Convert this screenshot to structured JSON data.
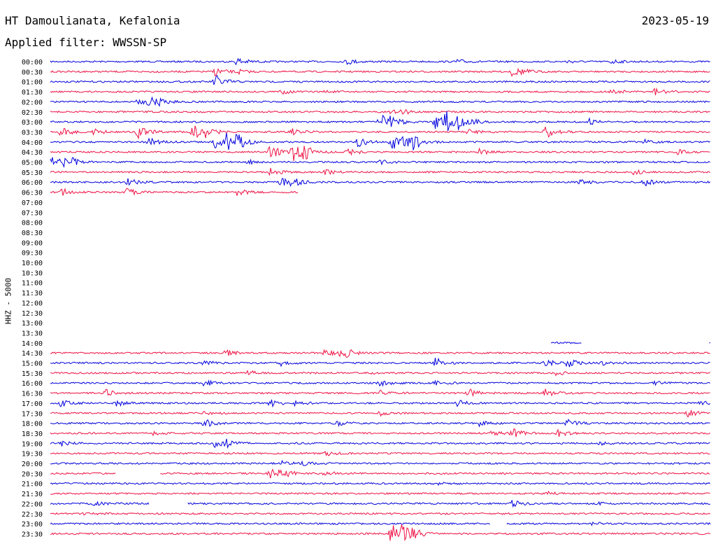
{
  "header": {
    "station": "HT Damoulianata, Kefalonia",
    "date": "2023-05-19",
    "filter": "Applied filter: WWSSN-SP"
  },
  "chart_data": {
    "type": "line",
    "title": "HT Damoulianata, Kefalonia",
    "subtitle": "Applied filter: WWSSN-SP",
    "ylabel": "HHZ - 5000",
    "colors": {
      "odd": "#0000dd",
      "even": "#ee1144"
    },
    "rows": [
      {
        "label": "00:00",
        "color": "blue",
        "segments": [
          [
            0,
            60
          ]
        ],
        "events": [
          [
            17,
            0.6
          ],
          [
            27,
            0.4
          ],
          [
            37,
            0.3
          ],
          [
            47,
            0.2
          ],
          [
            51,
            0.3
          ]
        ]
      },
      {
        "label": "00:30",
        "color": "red",
        "segments": [
          [
            0,
            60
          ]
        ],
        "events": [
          [
            15,
            0.6
          ],
          [
            17,
            0.3
          ],
          [
            42,
            0.7
          ],
          [
            43,
            0.2
          ]
        ]
      },
      {
        "label": "01:00",
        "color": "blue",
        "segments": [
          [
            0,
            60
          ]
        ],
        "events": [
          [
            15,
            1.0
          ]
        ]
      },
      {
        "label": "01:30",
        "color": "red",
        "segments": [
          [
            0,
            60
          ]
        ],
        "events": [
          [
            21,
            0.3
          ],
          [
            25,
            0.2
          ],
          [
            51,
            0.3
          ],
          [
            55,
            0.5
          ]
        ]
      },
      {
        "label": "02:00",
        "color": "blue",
        "segments": [
          [
            0,
            60
          ]
        ],
        "events": [
          [
            8,
            0.4
          ],
          [
            9,
            0.6
          ],
          [
            10,
            0.4
          ]
        ]
      },
      {
        "label": "02:30",
        "color": "red",
        "segments": [
          [
            0,
            60
          ]
        ],
        "events": [
          [
            31,
            0.2
          ],
          [
            32,
            0.3
          ]
        ]
      },
      {
        "label": "03:00",
        "color": "blue",
        "segments": [
          [
            0,
            60
          ]
        ],
        "events": [
          [
            30,
            1.2
          ],
          [
            31,
            0.6
          ],
          [
            35,
            1.0
          ],
          [
            36,
            1.4
          ],
          [
            37,
            0.9
          ],
          [
            38,
            0.5
          ],
          [
            49,
            0.4
          ]
        ]
      },
      {
        "label": "03:30",
        "color": "red",
        "segments": [
          [
            0,
            60
          ]
        ],
        "events": [
          [
            1,
            0.6
          ],
          [
            4,
            0.4
          ],
          [
            8,
            0.8
          ],
          [
            13,
            1.0
          ],
          [
            14,
            0.7
          ],
          [
            22,
            0.4
          ],
          [
            38,
            0.4
          ],
          [
            45,
            0.9
          ]
        ]
      },
      {
        "label": "04:00",
        "color": "blue",
        "segments": [
          [
            0,
            60
          ]
        ],
        "events": [
          [
            9,
            0.6
          ],
          [
            15,
            1.0
          ],
          [
            16,
            1.2
          ],
          [
            17,
            0.9
          ],
          [
            28,
            0.7
          ],
          [
            31,
            1.2
          ],
          [
            32,
            1.0
          ],
          [
            33,
            0.9
          ],
          [
            54,
            0.3
          ]
        ]
      },
      {
        "label": "04:30",
        "color": "red",
        "segments": [
          [
            0,
            60
          ]
        ],
        "events": [
          [
            20,
            1.2
          ],
          [
            22,
            1.4
          ],
          [
            23,
            1.0
          ],
          [
            27,
            0.5
          ],
          [
            39,
            0.4
          ],
          [
            57,
            0.3
          ]
        ]
      },
      {
        "label": "05:00",
        "color": "blue",
        "segments": [
          [
            0,
            60
          ]
        ],
        "events": [
          [
            0,
            1.0
          ],
          [
            1,
            0.5
          ],
          [
            2,
            0.4
          ],
          [
            18,
            0.3
          ],
          [
            30,
            0.3
          ]
        ]
      },
      {
        "label": "05:30",
        "color": "red",
        "segments": [
          [
            0,
            60
          ]
        ],
        "events": [
          [
            20,
            0.5
          ],
          [
            25,
            0.3
          ],
          [
            53,
            0.3
          ]
        ]
      },
      {
        "label": "06:00",
        "color": "blue",
        "segments": [
          [
            0,
            60
          ]
        ],
        "events": [
          [
            7,
            0.5
          ],
          [
            21,
            0.6
          ],
          [
            22,
            0.5
          ],
          [
            48,
            0.4
          ],
          [
            54,
            0.5
          ]
        ]
      },
      {
        "label": "06:30",
        "color": "red",
        "segments": [
          [
            0,
            22.5
          ]
        ],
        "events": [
          [
            1,
            0.6
          ],
          [
            7,
            0.5
          ],
          [
            17,
            0.5
          ]
        ]
      },
      {
        "label": "07:00",
        "color": "blue",
        "segments": [],
        "events": []
      },
      {
        "label": "07:30",
        "color": "red",
        "segments": [],
        "events": []
      },
      {
        "label": "08:00",
        "color": "blue",
        "segments": [],
        "events": []
      },
      {
        "label": "08:30",
        "color": "red",
        "segments": [],
        "events": []
      },
      {
        "label": "09:00",
        "color": "blue",
        "segments": [],
        "events": []
      },
      {
        "label": "09:30",
        "color": "red",
        "segments": [],
        "events": []
      },
      {
        "label": "10:00",
        "color": "blue",
        "segments": [],
        "events": []
      },
      {
        "label": "10:30",
        "color": "red",
        "segments": [],
        "events": []
      },
      {
        "label": "11:00",
        "color": "blue",
        "segments": [],
        "events": []
      },
      {
        "label": "11:30",
        "color": "red",
        "segments": [],
        "events": []
      },
      {
        "label": "12:00",
        "color": "blue",
        "segments": [],
        "events": []
      },
      {
        "label": "12:30",
        "color": "red",
        "segments": [],
        "events": []
      },
      {
        "label": "13:00",
        "color": "blue",
        "segments": [],
        "events": []
      },
      {
        "label": "13:30",
        "color": "red",
        "segments": [],
        "events": []
      },
      {
        "label": "14:00",
        "color": "blue",
        "segments": [
          [
            45.5,
            48.3
          ],
          [
            59.9,
            60
          ]
        ],
        "events": []
      },
      {
        "label": "14:30",
        "color": "red",
        "segments": [
          [
            0,
            60
          ]
        ],
        "events": [
          [
            16,
            0.4
          ],
          [
            25,
            0.5
          ],
          [
            26,
            0.6
          ],
          [
            27,
            0.4
          ]
        ]
      },
      {
        "label": "15:00",
        "color": "blue",
        "segments": [
          [
            0,
            60
          ]
        ],
        "events": [
          [
            14,
            0.3
          ],
          [
            21,
            0.4
          ],
          [
            35,
            0.7
          ],
          [
            45,
            0.5
          ],
          [
            47,
            0.6
          ],
          [
            50,
            0.4
          ]
        ]
      },
      {
        "label": "15:30",
        "color": "red",
        "segments": [
          [
            0,
            60
          ]
        ],
        "events": [
          [
            18,
            0.3
          ],
          [
            29,
            0.2
          ],
          [
            46,
            0.3
          ]
        ]
      },
      {
        "label": "16:00",
        "color": "blue",
        "segments": [
          [
            0,
            60
          ]
        ],
        "events": [
          [
            14,
            0.5
          ],
          [
            30,
            0.4
          ],
          [
            35,
            0.3
          ],
          [
            55,
            0.3
          ]
        ]
      },
      {
        "label": "16:30",
        "color": "red",
        "segments": [
          [
            0,
            60
          ]
        ],
        "events": [
          [
            5,
            0.5
          ],
          [
            30,
            0.4
          ],
          [
            38,
            0.6
          ],
          [
            45,
            0.5
          ]
        ]
      },
      {
        "label": "17:00",
        "color": "blue",
        "segments": [
          [
            0,
            60
          ]
        ],
        "events": [
          [
            1,
            0.5
          ],
          [
            6,
            0.4
          ],
          [
            20,
            0.5
          ],
          [
            22,
            0.4
          ],
          [
            37,
            0.4
          ],
          [
            59,
            0.4
          ]
        ]
      },
      {
        "label": "17:30",
        "color": "red",
        "segments": [
          [
            0,
            60
          ]
        ],
        "events": [
          [
            14,
            0.2
          ],
          [
            30,
            0.3
          ],
          [
            58,
            0.5
          ]
        ]
      },
      {
        "label": "18:00",
        "color": "blue",
        "segments": [
          [
            0,
            60
          ]
        ],
        "events": [
          [
            14,
            0.6
          ],
          [
            26,
            0.4
          ],
          [
            39,
            0.4
          ],
          [
            47,
            0.5
          ]
        ]
      },
      {
        "label": "18:30",
        "color": "red",
        "segments": [
          [
            0,
            60
          ]
        ],
        "events": [
          [
            9,
            0.3
          ],
          [
            40,
            0.4
          ],
          [
            42,
            0.7
          ],
          [
            46,
            0.6
          ]
        ]
      },
      {
        "label": "19:00",
        "color": "blue",
        "segments": [
          [
            0,
            60
          ]
        ],
        "events": [
          [
            1,
            0.4
          ],
          [
            15,
            0.6
          ],
          [
            16,
            0.5
          ],
          [
            50,
            0.3
          ]
        ]
      },
      {
        "label": "19:30",
        "color": "red",
        "segments": [
          [
            0,
            60
          ]
        ],
        "events": [
          [
            25,
            0.3
          ]
        ]
      },
      {
        "label": "20:00",
        "color": "blue",
        "segments": [
          [
            0,
            60
          ]
        ],
        "events": [
          [
            21,
            0.3
          ],
          [
            23,
            0.3
          ]
        ]
      },
      {
        "label": "20:30",
        "color": "red",
        "segments": [
          [
            0,
            6
          ],
          [
            10,
            60
          ]
        ],
        "events": [
          [
            20,
            0.8
          ],
          [
            21,
            0.6
          ],
          [
            25,
            0.4
          ]
        ]
      },
      {
        "label": "21:00",
        "color": "blue",
        "segments": [
          [
            0,
            60
          ]
        ],
        "events": [
          [
            35,
            0.2
          ]
        ]
      },
      {
        "label": "21:30",
        "color": "red",
        "segments": [
          [
            0,
            60
          ]
        ],
        "events": [
          [
            45,
            0.3
          ]
        ]
      },
      {
        "label": "22:00",
        "color": "blue",
        "segments": [
          [
            0,
            9
          ],
          [
            12.5,
            60
          ]
        ],
        "events": [
          [
            4,
            0.3
          ],
          [
            42,
            0.5
          ],
          [
            50,
            0.3
          ]
        ]
      },
      {
        "label": "22:30",
        "color": "red",
        "segments": [
          [
            0,
            60
          ]
        ],
        "events": [
          [
            3,
            0.2
          ]
        ]
      },
      {
        "label": "23:00",
        "color": "blue",
        "segments": [
          [
            0,
            40
          ],
          [
            41.5,
            60
          ]
        ],
        "events": [
          [
            49,
            0.4
          ]
        ]
      },
      {
        "label": "23:30",
        "color": "red",
        "segments": [
          [
            0,
            60
          ]
        ],
        "events": [
          [
            31,
            1.4
          ],
          [
            32,
            1.0
          ],
          [
            33,
            0.6
          ]
        ]
      }
    ]
  }
}
